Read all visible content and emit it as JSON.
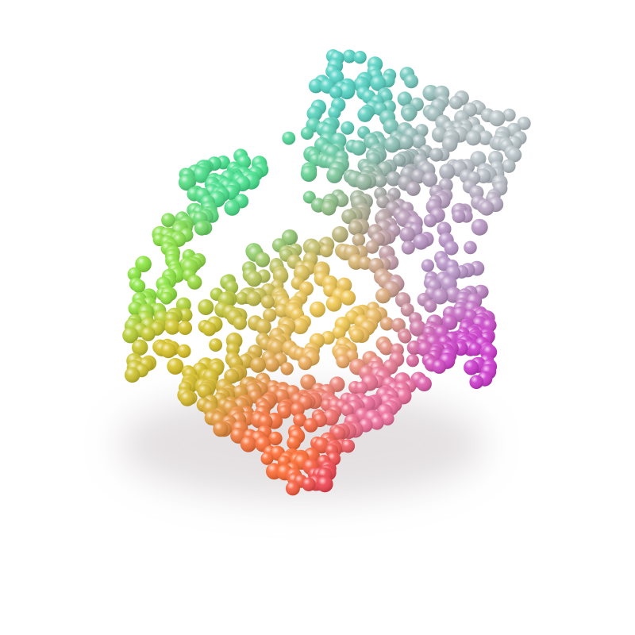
{
  "scene": {
    "subject": "point-cloud-armchair",
    "background_color": "#ffffff",
    "shadow_color": "#b4a8ac",
    "point_style": "shaded-spheres",
    "palette": {
      "back_top": "#4fd3c4",
      "back_right": "#b8c4c8",
      "left_arm_top": "#3fe08a",
      "left_arm_mid": "#86e63a",
      "left_front": "#d8c020",
      "seat_center": "#f2c84a",
      "seat_right": "#b893c8",
      "right_arm_front": "#cc33cc",
      "front_leg": "#ff6a2a",
      "front_bottom": "#ee3c4c",
      "seat_pink": "#ee6a9a"
    }
  }
}
